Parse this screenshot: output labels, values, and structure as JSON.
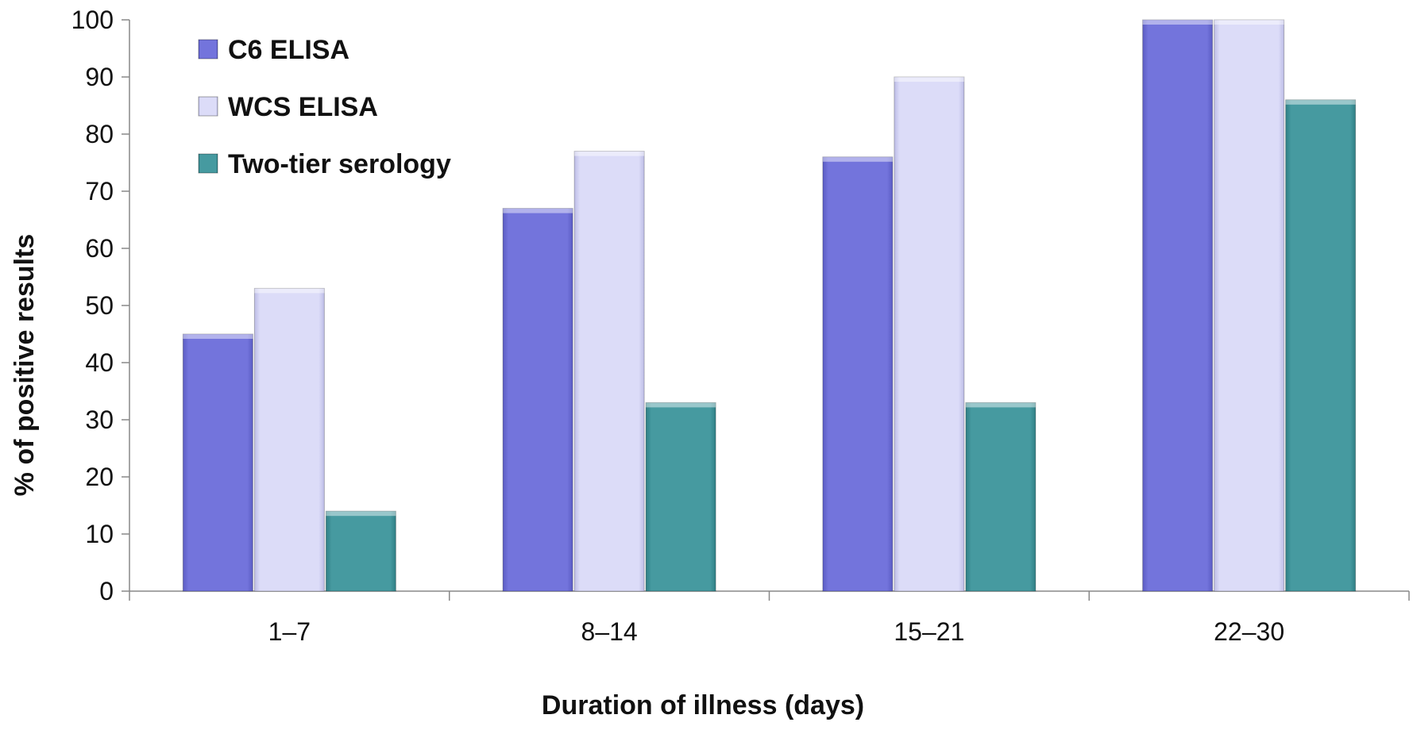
{
  "chart_data": {
    "type": "bar",
    "title": "",
    "xlabel": "Duration of illness (days)",
    "ylabel": "% of positive results",
    "categories": [
      "1–7",
      "8–14",
      "15–21",
      "22–30"
    ],
    "series": [
      {
        "name": "C6 ELISA",
        "values": [
          45,
          67,
          76,
          100
        ],
        "color": "#7374dc"
      },
      {
        "name": "WCS ELISA",
        "values": [
          53,
          77,
          90,
          100
        ],
        "color": "#dcdcf8"
      },
      {
        "name": "Two-tier serology",
        "values": [
          14,
          33,
          33,
          86
        ],
        "color": "#469aa0"
      }
    ],
    "ylim": [
      0,
      100
    ],
    "yticks": [
      0,
      10,
      20,
      30,
      40,
      50,
      60,
      70,
      80,
      90,
      100
    ],
    "grid": false,
    "legend_position": "top-left"
  }
}
